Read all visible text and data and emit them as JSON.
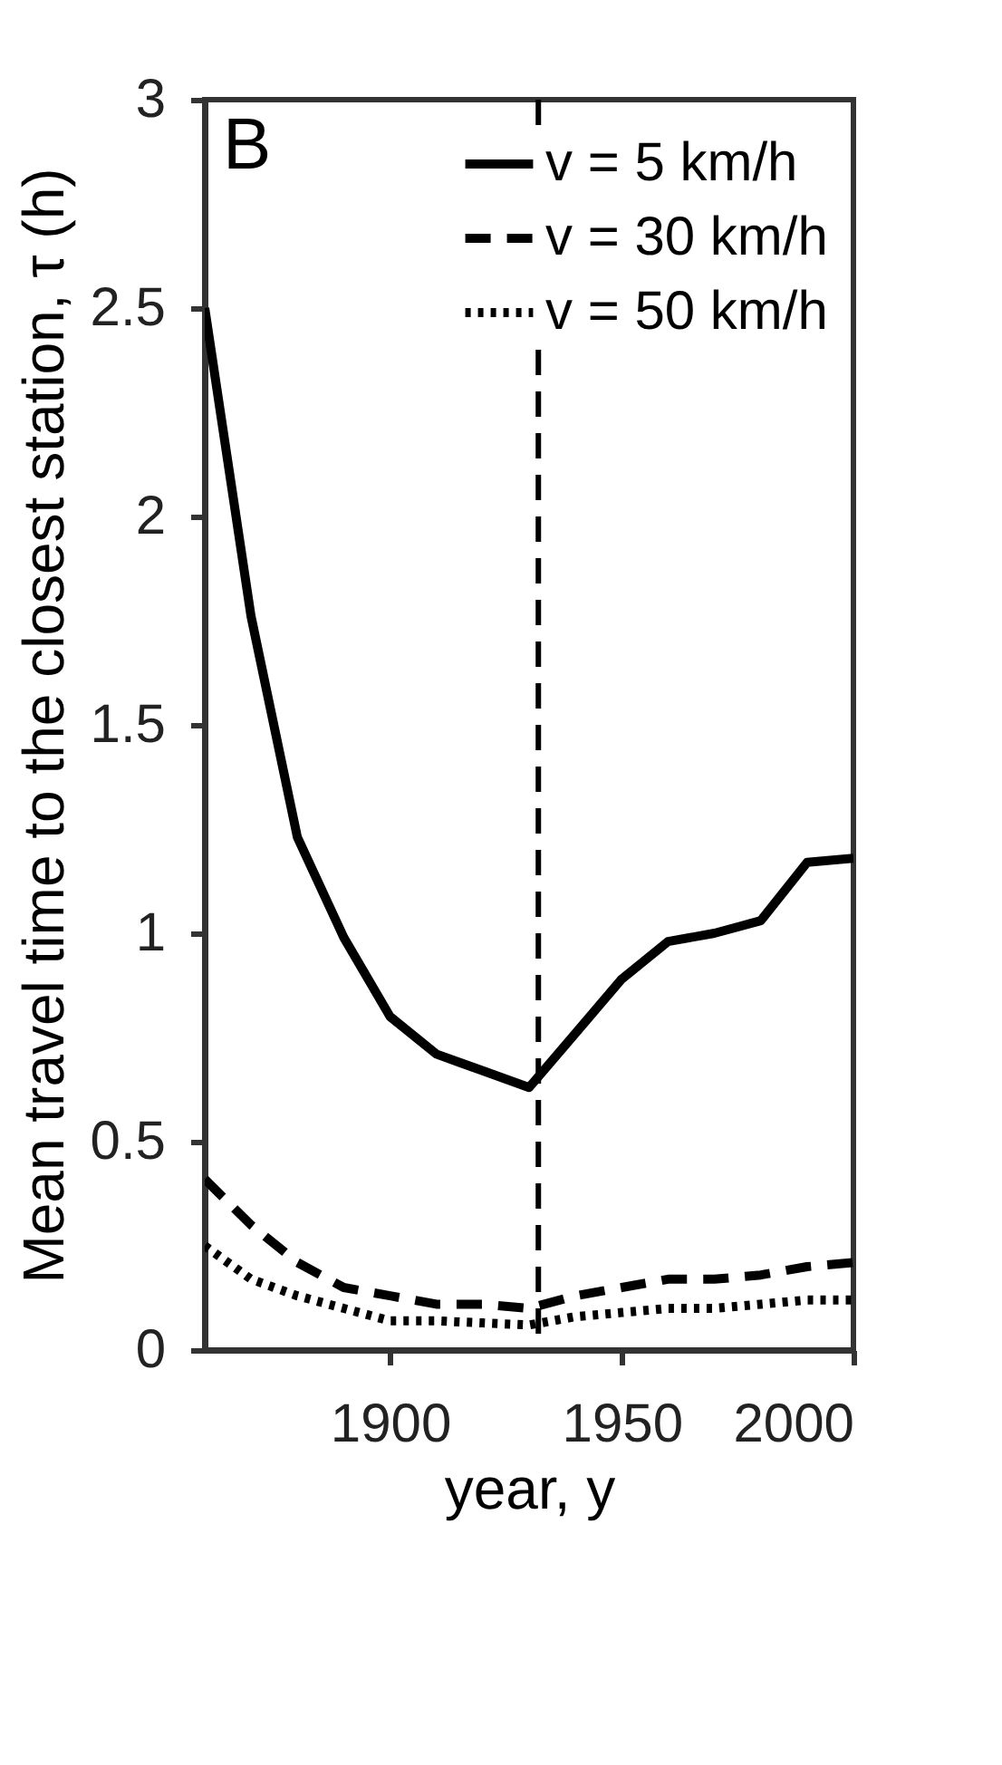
{
  "chart_data": {
    "type": "line",
    "xlabel": "year,  y",
    "ylabel": "Mean travel time to the closest station, τ (h)",
    "annotations": [
      "B"
    ],
    "x": [
      1860,
      1870,
      1880,
      1890,
      1900,
      1910,
      1920,
      1930,
      1940,
      1950,
      1960,
      1970,
      1980,
      1990,
      2000
    ],
    "series": [
      {
        "name": "v = 5 km/h",
        "color": "#000000",
        "line_style": "solid",
        "values": [
          2.5,
          1.76,
          1.23,
          0.99,
          0.8,
          0.71,
          0.67,
          0.63,
          0.76,
          0.89,
          0.98,
          1.0,
          1.03,
          1.17,
          1.18
        ]
      },
      {
        "name": "v = 30 km/h",
        "color": "#000000",
        "line_style": "dashed",
        "values": [
          0.41,
          0.3,
          0.21,
          0.15,
          0.13,
          0.11,
          0.11,
          0.1,
          0.13,
          0.15,
          0.17,
          0.17,
          0.18,
          0.2,
          0.21
        ]
      },
      {
        "name": "v = 50 km/h",
        "color": "#000000",
        "line_style": "dotted",
        "values": [
          0.25,
          0.17,
          0.13,
          0.1,
          0.07,
          0.07,
          0.065,
          0.06,
          0.08,
          0.09,
          0.1,
          0.1,
          0.11,
          0.12,
          0.12
        ]
      }
    ],
    "xlim": [
      1860,
      2000
    ],
    "xticks": [
      1900,
      1950,
      2000
    ],
    "ylim": [
      0,
      3
    ],
    "yticks": [
      0,
      0.5,
      1,
      1.5,
      2,
      2.5,
      3
    ],
    "ref_lines": [
      {
        "axis": "x",
        "value": 1932,
        "color": "#000000",
        "line_style": "dashed"
      }
    ],
    "legend": "top right",
    "grid": false,
    "marker": "none"
  }
}
